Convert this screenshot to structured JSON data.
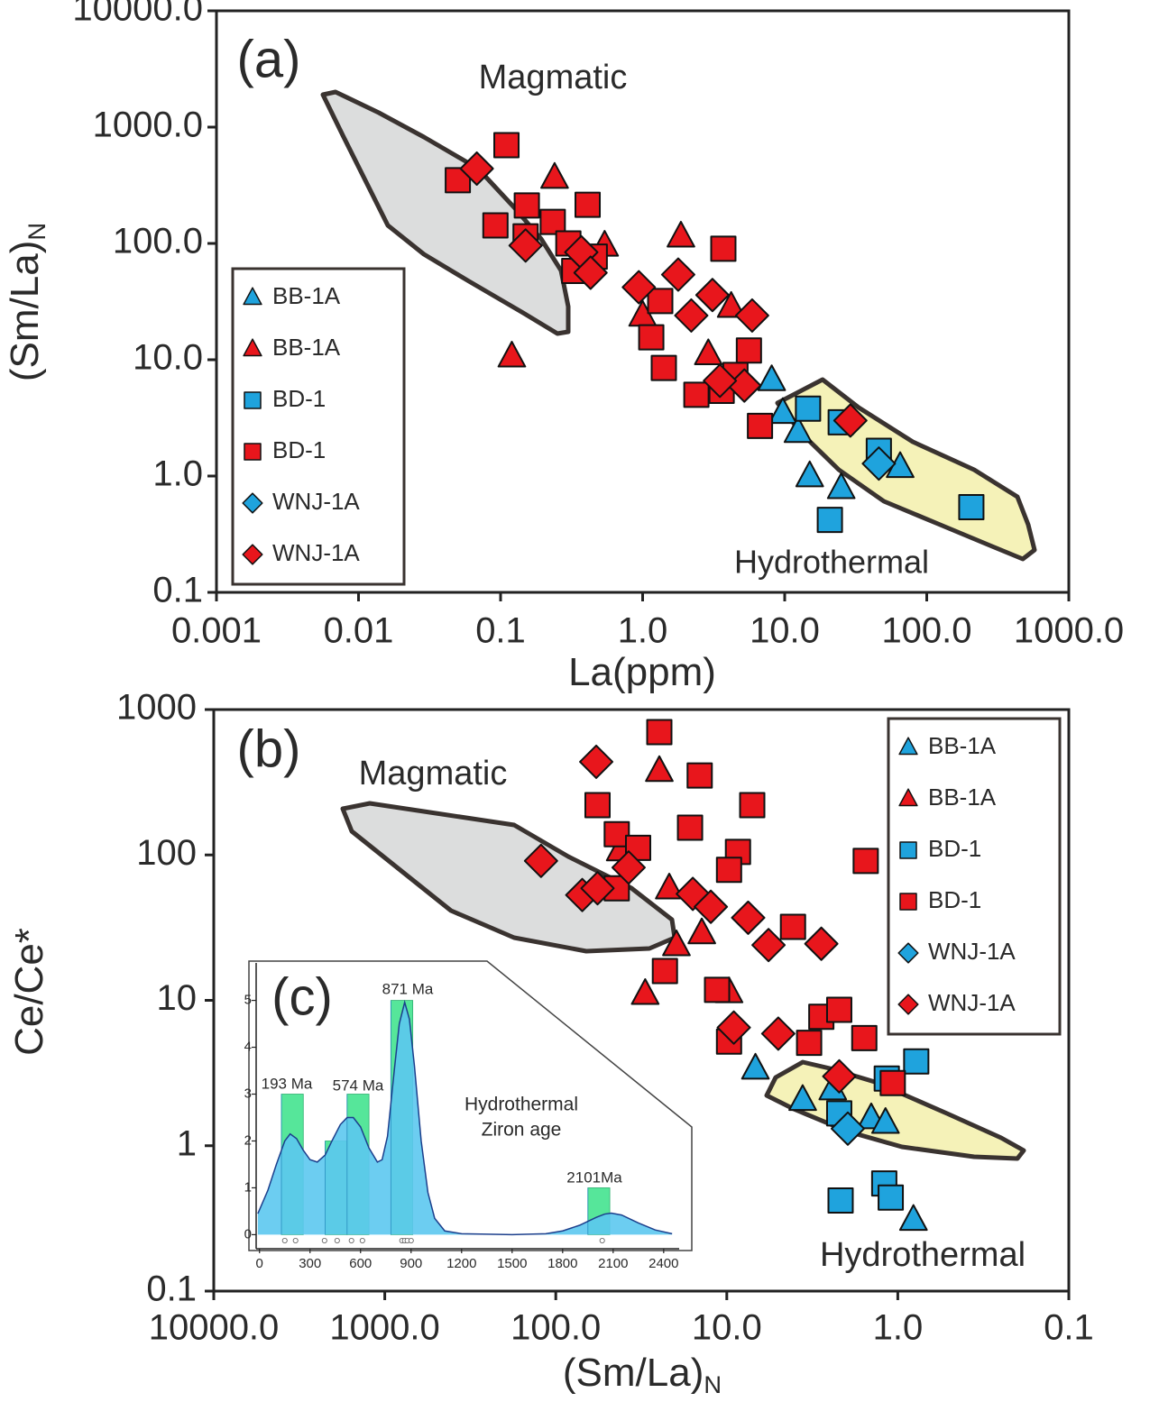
{
  "chart_data": [
    {
      "type": "scatter",
      "panel_label": "(a)",
      "xlabel": "La(ppm)",
      "ylabel": "(Sm/La)",
      "ylabel_subscript": "N",
      "xscale": "log",
      "yscale": "log",
      "xlim": [
        0.001,
        1000
      ],
      "ylim": [
        0.1,
        10000
      ],
      "xticks": [
        0.001,
        0.01,
        0.1,
        {
          "value": 1,
          "label": "1.0"
        },
        {
          "value": 10,
          "label": "10.0"
        },
        {
          "value": 100,
          "label": "100.0"
        },
        {
          "value": 1000,
          "label": "1000.0"
        }
      ],
      "yticks": [
        0.1,
        {
          "value": 1,
          "label": "1.0"
        },
        {
          "value": 10,
          "label": "10.0"
        },
        {
          "value": 100,
          "label": "100.0"
        },
        {
          "value": 1000,
          "label": "1000.0"
        },
        {
          "value": 10000,
          "label": "10000.0"
        }
      ],
      "legend": "lower left",
      "annotations": [
        "Magmatic",
        "Hydrothermal"
      ],
      "series": [
        {
          "name": "BB-1A",
          "color": "#1fa3dd",
          "marker": "triangle",
          "x": [
            8.1,
            9.7,
            12.4,
            15,
            25,
            65
          ],
          "values": [
            6.7,
            3.5,
            2.4,
            1.0,
            0.79,
            1.2
          ]
        },
        {
          "name": "BB-1A",
          "color": "#e8161c",
          "marker": "triangle",
          "x": [
            0.24,
            0.54,
            1.86,
            1.0,
            0.12,
            2.9,
            4.2
          ],
          "values": [
            368,
            96,
            115,
            24,
            10.7,
            11.2,
            28.6
          ]
        },
        {
          "name": "BD-1",
          "color": "#1fa3dd",
          "marker": "square",
          "x": [
            14.6,
            24.8,
            46,
            20.8,
            206
          ],
          "values": [
            3.8,
            2.9,
            1.65,
            0.42,
            0.54
          ]
        },
        {
          "name": "BD-1",
          "color": "#e8161c",
          "marker": "square",
          "x": [
            0.05,
            0.11,
            0.092,
            0.153,
            0.233,
            0.15,
            0.41,
            0.3,
            0.33,
            0.46,
            1.33,
            1.15,
            1.41,
            2.39,
            3.6,
            4.5,
            5.6,
            3.7,
            6.7
          ],
          "values": [
            350,
            700,
            143,
            212,
            153,
            115,
            215,
            100,
            58,
            77,
            32,
            15.6,
            8.5,
            5.0,
            5.4,
            7.4,
            12.0,
            90,
            2.7
          ]
        },
        {
          "name": "WNJ-1A",
          "color": "#1fa3dd",
          "marker": "diamond",
          "x": [
            46
          ],
          "values": [
            1.28
          ]
        },
        {
          "name": "WNJ-1A",
          "color": "#e8161c",
          "marker": "diamond",
          "x": [
            0.068,
            0.15,
            0.37,
            0.43,
            0.94,
            1.78,
            2.2,
            3.1,
            5.9,
            5.2,
            3.5,
            29
          ],
          "values": [
            440,
            96,
            84,
            56,
            42,
            54,
            24,
            36,
            24,
            6.0,
            6.6,
            3.0
          ]
        }
      ]
    },
    {
      "type": "scatter",
      "panel_label": "(b)",
      "xlabel": "(Sm/La)",
      "xlabel_subscript": "N",
      "ylabel": "Ce/Ce*",
      "xscale": "log",
      "yscale": "log",
      "xlim": [
        10000,
        0.1
      ],
      "ylim": [
        0.1,
        1000
      ],
      "xticks": [
        {
          "value": 10000,
          "label": "10000.0"
        },
        {
          "value": 1000,
          "label": "1000.0"
        },
        {
          "value": 100,
          "label": "100.0"
        },
        {
          "value": 10,
          "label": "10.0"
        },
        {
          "value": 1,
          "label": "1.0"
        },
        0.1
      ],
      "yticks": [
        0.1,
        1,
        10,
        100,
        1000
      ],
      "legend": "upper right",
      "annotations": [
        "Magmatic",
        "Hydrothermal"
      ],
      "series": [
        {
          "name": "BB-1A",
          "color": "#1fa3dd",
          "marker": "triangle",
          "x": [
            6.8,
            3.6,
            2.4,
            1.43,
            1.18,
            0.81
          ],
          "values": [
            3.4,
            2.07,
            2.45,
            1.55,
            1.44,
            0.31
          ]
        },
        {
          "name": "BB-1A",
          "color": "#e8161c",
          "marker": "triangle",
          "x": [
            24.8,
            42,
            21.7,
            14,
            19.7,
            30,
            9.7
          ],
          "values": [
            379,
            108,
            59,
            29,
            24,
            11.1,
            11.4
          ]
        },
        {
          "name": "BD-1",
          "color": "#1fa3dd",
          "marker": "square",
          "x": [
            0.78,
            1.16,
            2.2,
            2.16,
            1.2,
            1.1
          ],
          "values": [
            3.8,
            2.9,
            1.67,
            0.42,
            0.55,
            0.44
          ]
        },
        {
          "name": "BD-1",
          "color": "#e8161c",
          "marker": "square",
          "x": [
            24.8,
            57,
            14.4,
            7.1,
            44,
            33,
            16.4,
            8.6,
            9.7,
            4.1,
            1.54,
            44,
            23,
            11.4,
            9.7,
            2.8,
            3.3,
            2.2,
            1.57,
            1.07
          ],
          "values": [
            700,
            220,
            352,
            220,
            139,
            112,
            154,
            105,
            79,
            32,
            91,
            59,
            15.9,
            11.8,
            5.2,
            7.7,
            5.1,
            8.6,
            5.5,
            2.7
          ]
        },
        {
          "name": "WNJ-1A",
          "color": "#1fa3dd",
          "marker": "diamond",
          "x": [
            1.96
          ],
          "values": [
            1.31
          ]
        },
        {
          "name": "WNJ-1A",
          "color": "#e8161c",
          "marker": "diamond",
          "x": [
            58,
            122,
            70,
            57,
            37.5,
            15.8,
            12.4,
            7.5,
            5.7,
            2.8,
            9.1,
            5.0,
            2.2
          ],
          "values": [
            437,
            91,
            53,
            59,
            82,
            54,
            44,
            37,
            24,
            24.5,
            6.5,
            5.9,
            3.0
          ]
        }
      ]
    },
    {
      "type": "histogram",
      "panel_label": "(c)",
      "xlim": [
        -20,
        2492
      ],
      "ylim": [
        -0.3,
        5.8
      ],
      "xticks": [
        0,
        300,
        600,
        900,
        1200,
        1500,
        1800,
        2100,
        2400
      ],
      "yticks": [
        0,
        1,
        2,
        3,
        4,
        5
      ],
      "bins": [
        0,
        130,
        260,
        390,
        520,
        650,
        780,
        910,
        1040,
        1170,
        1300,
        1430,
        1560,
        1690,
        1820,
        1950,
        2080,
        2210,
        2340,
        2470
      ],
      "values": [
        0,
        3,
        0,
        2,
        3,
        0,
        5,
        0,
        0,
        0,
        0,
        0,
        0,
        0,
        0,
        1,
        0,
        0,
        0
      ],
      "color": "#56e69a",
      "density": {
        "color": "#5cc8ef",
        "line_color": "#1c3f8c",
        "x": [
          -10,
          50,
          100,
          150,
          182,
          220,
          260,
          300,
          343,
          390,
          430,
          480,
          520,
          557,
          600,
          650,
          700,
          728,
          760,
          800,
          830,
          862,
          890,
          920,
          960,
          1000,
          1040,
          1100,
          1200,
          1500,
          1700,
          1800,
          1900,
          2000,
          2050,
          2089,
          2150,
          2250,
          2350,
          2450
        ],
        "values": [
          0.45,
          0.95,
          1.5,
          2.0,
          2.15,
          2.05,
          1.8,
          1.6,
          1.55,
          1.7,
          2.0,
          2.35,
          2.5,
          2.5,
          2.3,
          1.85,
          1.55,
          1.6,
          2.1,
          3.5,
          4.5,
          4.96,
          4.6,
          3.6,
          2.0,
          0.9,
          0.35,
          0.08,
          0.02,
          0,
          0.02,
          0.08,
          0.2,
          0.37,
          0.44,
          0.46,
          0.42,
          0.25,
          0.1,
          0.02
        ]
      },
      "ages": [
        150,
        214,
        386,
        461,
        546,
        611,
        846,
        862,
        878,
        900,
        2035
      ],
      "annotations": [
        "193 Ma",
        "574 Ma",
        "871 Ma",
        "2101Ma",
        "Hydrothermal",
        "Ziron age"
      ]
    }
  ]
}
